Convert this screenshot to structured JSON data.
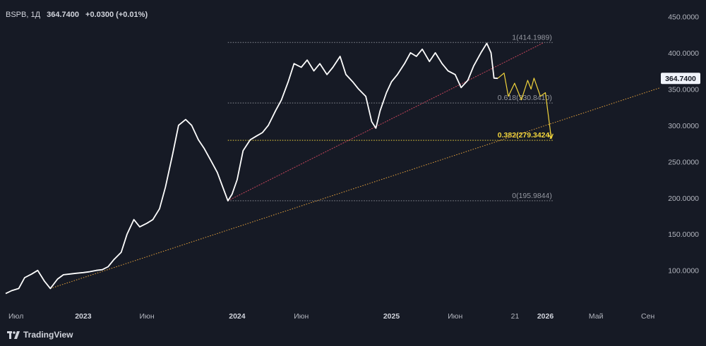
{
  "header": {
    "symbol": "BSPB, 1Д",
    "last": "364.7400",
    "change": "+0.0300 (+0.01%)"
  },
  "brand": {
    "name": "TradingView",
    "icon": "tradingview-logo-icon"
  },
  "colors": {
    "background": "#161a25",
    "price_line": "#ffffff",
    "forecast": "#f2d53c",
    "support_trend": "#e8a33c",
    "upper_trend": "#c7455b",
    "fib_default": "#8a8d96",
    "fib_highlight": "#f2d53c",
    "y_axis_labels": "#b2b5be"
  },
  "chart_data": {
    "type": "line",
    "title": "",
    "xlabel": "",
    "ylabel": "",
    "x_range": [
      "2022-07-01",
      "2026-09-30"
    ],
    "ylim": [
      55,
      465
    ],
    "y_ticks": [
      100,
      150,
      200,
      250,
      300,
      350,
      400,
      450
    ],
    "y_tick_labels": [
      "100.0000",
      "150.0000",
      "200.0000",
      "250.0000",
      "300.0000",
      "350.0000",
      "400.0000",
      "450.0000"
    ],
    "x_ticks": [
      {
        "date": "2022-07-01",
        "label": "Июл",
        "strong": false
      },
      {
        "date": "2023-01-01",
        "label": "2023",
        "strong": true
      },
      {
        "date": "2023-06-01",
        "label": "Июн",
        "strong": false
      },
      {
        "date": "2024-01-01",
        "label": "2024",
        "strong": true
      },
      {
        "date": "2024-06-01",
        "label": "Июн",
        "strong": false
      },
      {
        "date": "2025-01-01",
        "label": "2025",
        "strong": true
      },
      {
        "date": "2025-06-01",
        "label": "Июн",
        "strong": false
      },
      {
        "date": "2025-10-21",
        "label": "21",
        "strong": false
      },
      {
        "date": "2026-01-01",
        "label": "2026",
        "strong": true
      },
      {
        "date": "2026-05-01",
        "label": "Май",
        "strong": false
      },
      {
        "date": "2026-09-01",
        "label": "Сен",
        "strong": false
      }
    ],
    "grid": false,
    "legend": "none",
    "series": [
      {
        "values": [
          {
            "x": "2022-07-01",
            "y": 68
          },
          {
            "x": "2022-07-15",
            "y": 72
          },
          {
            "x": "2022-08-01",
            "y": 75
          },
          {
            "x": "2022-08-15",
            "y": 90
          },
          {
            "x": "2022-09-01",
            "y": 95
          },
          {
            "x": "2022-09-15",
            "y": 100
          },
          {
            "x": "2022-10-01",
            "y": 85
          },
          {
            "x": "2022-10-15",
            "y": 75
          },
          {
            "x": "2022-11-01",
            "y": 88
          },
          {
            "x": "2022-11-15",
            "y": 94
          },
          {
            "x": "2022-12-01",
            "y": 95
          },
          {
            "x": "2022-12-15",
            "y": 96
          },
          {
            "x": "2023-01-01",
            "y": 97
          },
          {
            "x": "2023-01-15",
            "y": 98
          },
          {
            "x": "2023-02-01",
            "y": 100
          },
          {
            "x": "2023-02-15",
            "y": 101
          },
          {
            "x": "2023-03-01",
            "y": 105
          },
          {
            "x": "2023-03-15",
            "y": 115
          },
          {
            "x": "2023-04-01",
            "y": 125
          },
          {
            "x": "2023-04-15",
            "y": 150
          },
          {
            "x": "2023-05-01",
            "y": 170
          },
          {
            "x": "2023-05-15",
            "y": 160
          },
          {
            "x": "2023-06-01",
            "y": 165
          },
          {
            "x": "2023-06-15",
            "y": 170
          },
          {
            "x": "2023-07-01",
            "y": 185
          },
          {
            "x": "2023-07-15",
            "y": 215
          },
          {
            "x": "2023-08-01",
            "y": 260
          },
          {
            "x": "2023-08-15",
            "y": 300
          },
          {
            "x": "2023-09-01",
            "y": 308
          },
          {
            "x": "2023-09-15",
            "y": 300
          },
          {
            "x": "2023-10-01",
            "y": 280
          },
          {
            "x": "2023-10-15",
            "y": 268
          },
          {
            "x": "2023-11-01",
            "y": 250
          },
          {
            "x": "2023-11-15",
            "y": 235
          },
          {
            "x": "2023-12-01",
            "y": 210
          },
          {
            "x": "2023-12-10",
            "y": 196
          },
          {
            "x": "2023-12-20",
            "y": 205
          },
          {
            "x": "2024-01-01",
            "y": 225
          },
          {
            "x": "2024-01-15",
            "y": 265
          },
          {
            "x": "2024-02-01",
            "y": 280
          },
          {
            "x": "2024-02-15",
            "y": 285
          },
          {
            "x": "2024-03-01",
            "y": 290
          },
          {
            "x": "2024-03-15",
            "y": 300
          },
          {
            "x": "2024-04-01",
            "y": 320
          },
          {
            "x": "2024-04-15",
            "y": 335
          },
          {
            "x": "2024-05-01",
            "y": 360
          },
          {
            "x": "2024-05-15",
            "y": 385
          },
          {
            "x": "2024-06-01",
            "y": 380
          },
          {
            "x": "2024-06-15",
            "y": 390
          },
          {
            "x": "2024-07-01",
            "y": 375
          },
          {
            "x": "2024-07-15",
            "y": 385
          },
          {
            "x": "2024-08-01",
            "y": 370
          },
          {
            "x": "2024-08-15",
            "y": 380
          },
          {
            "x": "2024-09-01",
            "y": 395
          },
          {
            "x": "2024-09-15",
            "y": 370
          },
          {
            "x": "2024-10-01",
            "y": 360
          },
          {
            "x": "2024-10-15",
            "y": 350
          },
          {
            "x": "2024-11-01",
            "y": 340
          },
          {
            "x": "2024-11-15",
            "y": 305
          },
          {
            "x": "2024-11-25",
            "y": 296
          },
          {
            "x": "2024-12-05",
            "y": 320
          },
          {
            "x": "2024-12-20",
            "y": 345
          },
          {
            "x": "2025-01-01",
            "y": 360
          },
          {
            "x": "2025-01-15",
            "y": 370
          },
          {
            "x": "2025-02-01",
            "y": 385
          },
          {
            "x": "2025-02-15",
            "y": 400
          },
          {
            "x": "2025-03-01",
            "y": 395
          },
          {
            "x": "2025-03-15",
            "y": 405
          },
          {
            "x": "2025-04-01",
            "y": 388
          },
          {
            "x": "2025-04-15",
            "y": 400
          },
          {
            "x": "2025-05-01",
            "y": 385
          },
          {
            "x": "2025-05-15",
            "y": 375
          },
          {
            "x": "2025-06-01",
            "y": 370
          },
          {
            "x": "2025-06-15",
            "y": 352
          },
          {
            "x": "2025-07-01",
            "y": 362
          },
          {
            "x": "2025-07-15",
            "y": 382
          },
          {
            "x": "2025-08-01",
            "y": 400
          },
          {
            "x": "2025-08-15",
            "y": 413
          },
          {
            "x": "2025-08-25",
            "y": 400
          },
          {
            "x": "2025-09-01",
            "y": 365
          },
          {
            "x": "2025-09-10",
            "y": 364.74
          }
        ]
      },
      {
        "values": [
          {
            "x": "2025-09-10",
            "y": 364.74
          },
          {
            "x": "2025-09-25",
            "y": 372
          },
          {
            "x": "2025-10-05",
            "y": 340
          },
          {
            "x": "2025-10-20",
            "y": 358
          },
          {
            "x": "2025-11-05",
            "y": 335
          },
          {
            "x": "2025-11-20",
            "y": 362
          },
          {
            "x": "2025-11-28",
            "y": 350
          },
          {
            "x": "2025-12-05",
            "y": 365
          },
          {
            "x": "2025-12-20",
            "y": 340
          },
          {
            "x": "2026-01-01",
            "y": 345
          },
          {
            "x": "2026-01-15",
            "y": 282
          }
        ]
      }
    ],
    "trendlines": [
      {
        "role": "support",
        "from": {
          "x": "2022-10-15",
          "y": 75
        },
        "to": {
          "x": "2026-10-01",
          "y": 352
        }
      },
      {
        "role": "upper",
        "from": {
          "x": "2023-12-10",
          "y": 196
        },
        "to": {
          "x": "2025-12-28",
          "y": 414
        }
      }
    ],
    "fib_levels": [
      {
        "label": "1(414.1989)",
        "value": 414.1989,
        "highlight": false
      },
      {
        "label": "0.618(330.8410)",
        "value": 330.841,
        "highlight": false
      },
      {
        "label": "0.382(279.3424)",
        "value": 279.3424,
        "highlight": true
      },
      {
        "label": "0(195.9844)",
        "value": 195.9844,
        "highlight": false
      }
    ],
    "fib_x_range": [
      "2023-12-10",
      "2026-01-20"
    ],
    "last_price": {
      "value": 364.74,
      "label": "364.7400"
    }
  }
}
